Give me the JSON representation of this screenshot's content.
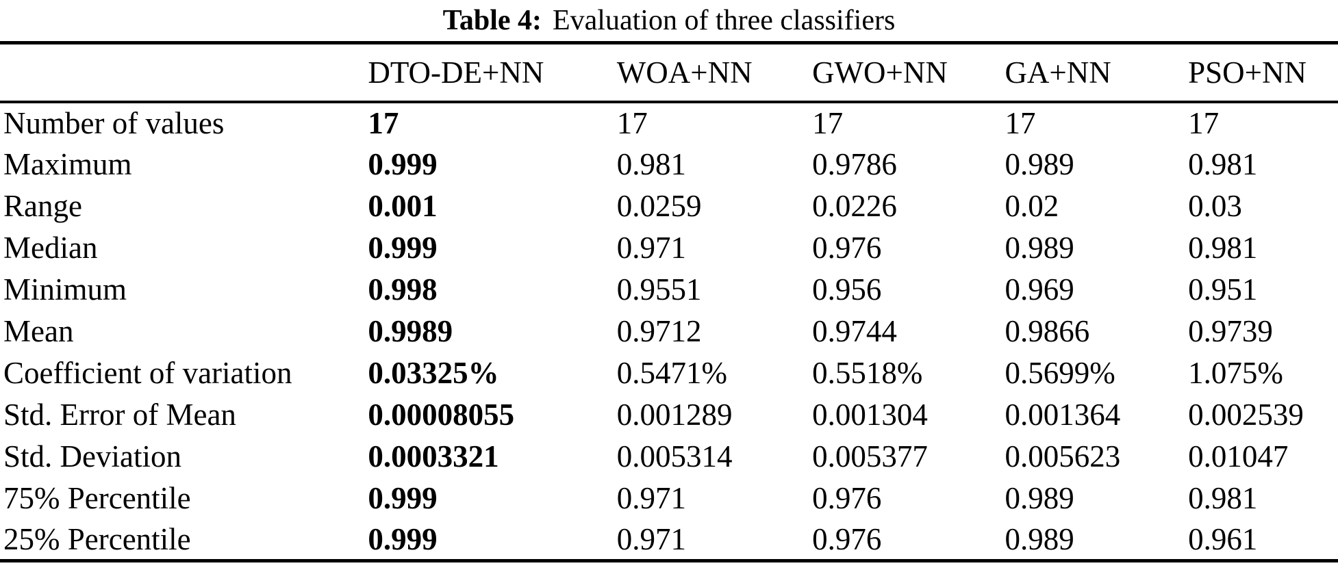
{
  "caption": {
    "label": "Table 4:",
    "text": "Evaluation of three classifiers"
  },
  "table": {
    "columns": [
      "",
      "DTO-DE+NN",
      "WOA+NN",
      "GWO+NN",
      "GA+NN",
      "PSO+NN"
    ],
    "bold_column": "DTO-DE+NN",
    "rows": [
      {
        "label": "Number of values",
        "values": [
          "17",
          "17",
          "17",
          "17",
          "17"
        ]
      },
      {
        "label": "Maximum",
        "values": [
          "0.999",
          "0.981",
          "0.9786",
          "0.989",
          "0.981"
        ]
      },
      {
        "label": "Range",
        "values": [
          "0.001",
          "0.0259",
          "0.0226",
          "0.02",
          "0.03"
        ]
      },
      {
        "label": "Median",
        "values": [
          "0.999",
          "0.971",
          "0.976",
          "0.989",
          "0.981"
        ]
      },
      {
        "label": "Minimum",
        "values": [
          "0.998",
          "0.9551",
          "0.956",
          "0.969",
          "0.951"
        ]
      },
      {
        "label": "Mean",
        "values": [
          "0.9989",
          "0.9712",
          "0.9744",
          "0.9866",
          "0.9739"
        ]
      },
      {
        "label": "Coefficient of variation",
        "values": [
          "0.03325%",
          "0.5471%",
          "0.5518%",
          "0.5699%",
          "1.075%"
        ]
      },
      {
        "label": "Std. Error of Mean",
        "values": [
          "0.00008055",
          "0.001289",
          "0.001304",
          "0.001364",
          "0.002539"
        ]
      },
      {
        "label": "Std. Deviation",
        "values": [
          "0.0003321",
          "0.005314",
          "0.005377",
          "0.005623",
          "0.01047"
        ]
      },
      {
        "label": "75% Percentile",
        "values": [
          "0.999",
          "0.971",
          "0.976",
          "0.989",
          "0.981"
        ]
      },
      {
        "label": "25% Percentile",
        "values": [
          "0.999",
          "0.971",
          "0.976",
          "0.989",
          "0.961"
        ]
      }
    ],
    "colors": {
      "text": "#000000",
      "background": "#ffffff",
      "rule": "#000000"
    }
  },
  "chart_data": {
    "type": "table",
    "title": "Table 4: Evaluation of three classifiers",
    "categories": [
      "Number of values",
      "Maximum",
      "Range",
      "Median",
      "Minimum",
      "Mean",
      "Coefficient of variation",
      "Std. Error of Mean",
      "Std. Deviation",
      "75% Percentile",
      "25% Percentile"
    ],
    "series": [
      {
        "name": "DTO-DE+NN",
        "values": [
          "17",
          "0.999",
          "0.001",
          "0.999",
          "0.998",
          "0.9989",
          "0.03325%",
          "0.00008055",
          "0.0003321",
          "0.999",
          "0.999"
        ]
      },
      {
        "name": "WOA+NN",
        "values": [
          "17",
          "0.981",
          "0.0259",
          "0.971",
          "0.9551",
          "0.9712",
          "0.5471%",
          "0.001289",
          "0.005314",
          "0.971",
          "0.971"
        ]
      },
      {
        "name": "GWO+NN",
        "values": [
          "17",
          "0.9786",
          "0.0226",
          "0.976",
          "0.956",
          "0.9744",
          "0.5518%",
          "0.001304",
          "0.005377",
          "0.976",
          "0.976"
        ]
      },
      {
        "name": "GA+NN",
        "values": [
          "17",
          "0.989",
          "0.02",
          "0.989",
          "0.969",
          "0.9866",
          "0.5699%",
          "0.001364",
          "0.005623",
          "0.989",
          "0.989"
        ]
      },
      {
        "name": "PSO+NN",
        "values": [
          "17",
          "0.981",
          "0.03",
          "0.981",
          "0.951",
          "0.9739",
          "1.075%",
          "0.002539",
          "0.01047",
          "0.981",
          "0.961"
        ]
      }
    ]
  }
}
